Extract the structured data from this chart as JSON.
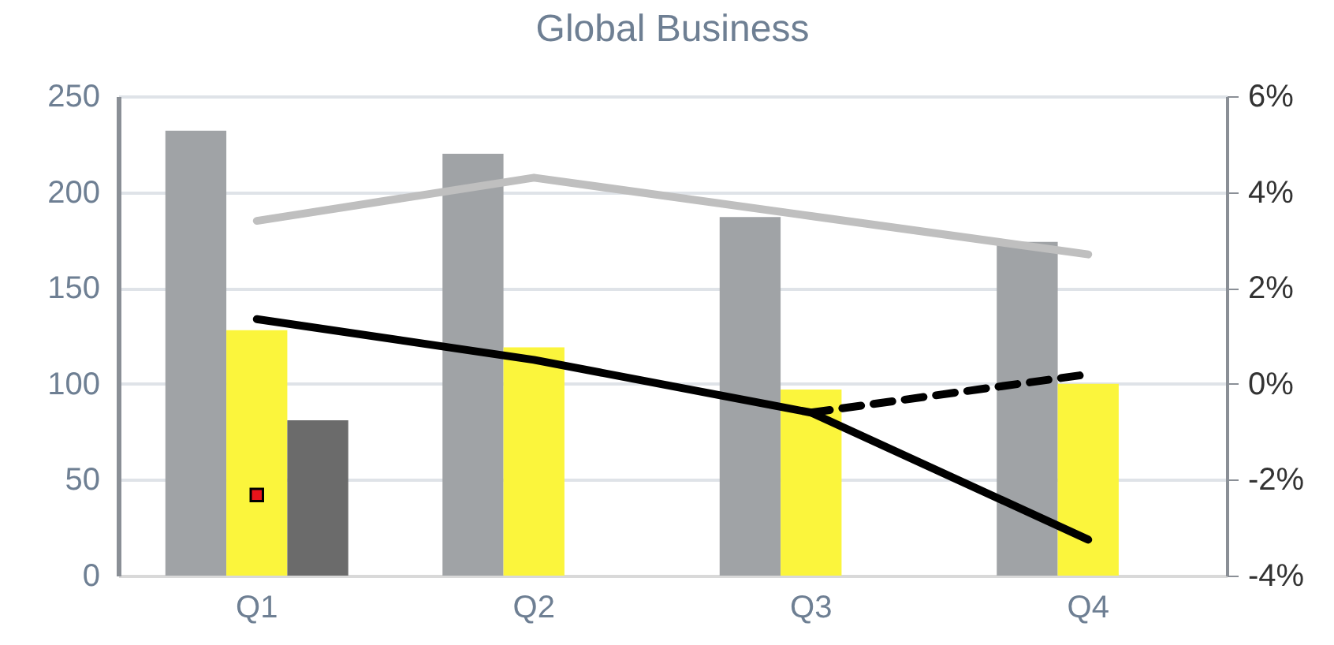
{
  "chart_data": {
    "type": "bar",
    "title": "Global Business",
    "categories": [
      "Q1",
      "Q2",
      "Q3",
      "Q4"
    ],
    "series": [
      {
        "type": "bar",
        "color": "#a0a3a6",
        "values": [
          232,
          220,
          187,
          174
        ]
      },
      {
        "type": "bar",
        "color": "#fbf53c",
        "values": [
          128,
          119,
          97,
          100
        ]
      },
      {
        "type": "bar",
        "color": "#6b6b6b",
        "values": [
          81,
          null,
          null,
          null
        ]
      },
      {
        "type": "scatter",
        "color": "#e8141b",
        "marker": "square",
        "values": [
          42,
          null,
          null,
          null
        ]
      },
      {
        "type": "line",
        "axis": "y2",
        "color": "#bfbfbf",
        "line_style": "solid",
        "values": [
          3.4,
          4.3,
          3.5,
          2.7
        ]
      },
      {
        "type": "line",
        "axis": "y2",
        "color": "#000000",
        "line_style": "solid",
        "values": [
          1.35,
          0.5,
          -0.6,
          -3.25
        ]
      },
      {
        "type": "line",
        "axis": "y2",
        "color": "#000000",
        "line_style": "dashed",
        "values": [
          null,
          null,
          -0.6,
          0.2
        ]
      }
    ],
    "ylim": [
      0,
      250
    ],
    "yticks": [
      0,
      50,
      100,
      150,
      200,
      250
    ],
    "y2lim": [
      -4,
      6
    ],
    "y2ticks": [
      {
        "value": 6,
        "label": "6%"
      },
      {
        "value": 4,
        "label": "4%"
      },
      {
        "value": 2,
        "label": "2%"
      },
      {
        "value": 0,
        "label": "0%"
      },
      {
        "value": -2,
        "label": "-2%"
      },
      {
        "value": -4,
        "label": "-4%"
      }
    ],
    "grid": "y",
    "legend": false
  }
}
